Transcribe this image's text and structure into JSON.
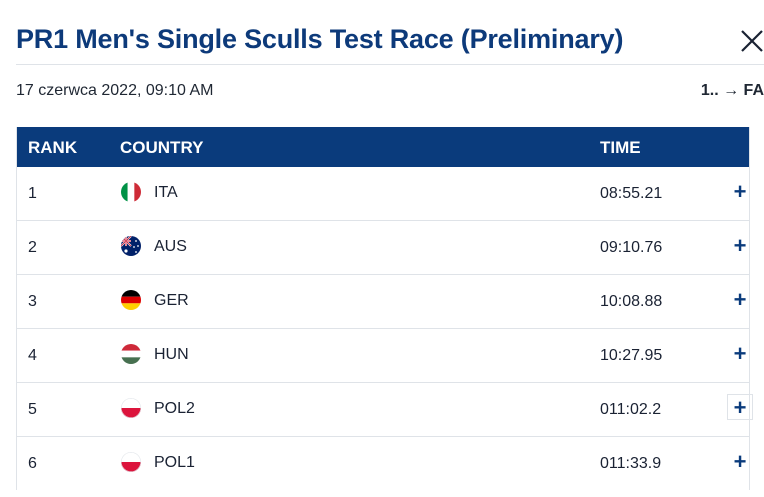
{
  "header": {
    "title": "PR1 Men's Single Sculls Test Race (Preliminary)",
    "date": "17 czerwca 2022, 09:10 AM",
    "progression": "1.. → FA"
  },
  "table": {
    "columns": {
      "rank": "RANK",
      "country": "COUNTRY",
      "time": "TIME"
    },
    "rows": [
      {
        "rank": "1",
        "country": "ITA",
        "flag": "italy-flag",
        "time": "08:55.21",
        "expand": "+"
      },
      {
        "rank": "2",
        "country": "AUS",
        "flag": "australia-flag",
        "time": "09:10.76",
        "expand": "+"
      },
      {
        "rank": "3",
        "country": "GER",
        "flag": "germany-flag",
        "time": "10:08.88",
        "expand": "+"
      },
      {
        "rank": "4",
        "country": "HUN",
        "flag": "hungary-flag",
        "time": "10:27.95",
        "expand": "+"
      },
      {
        "rank": "5",
        "country": "POL2",
        "flag": "poland-flag",
        "time": "011:02.2",
        "expand": "+"
      },
      {
        "rank": "6",
        "country": "POL1",
        "flag": "poland-flag",
        "time": "011:33.9",
        "expand": "+"
      }
    ]
  },
  "colors": {
    "brand": "#0a3b7c",
    "title": "#0d3a7a",
    "divider": "#dfe3e8"
  }
}
